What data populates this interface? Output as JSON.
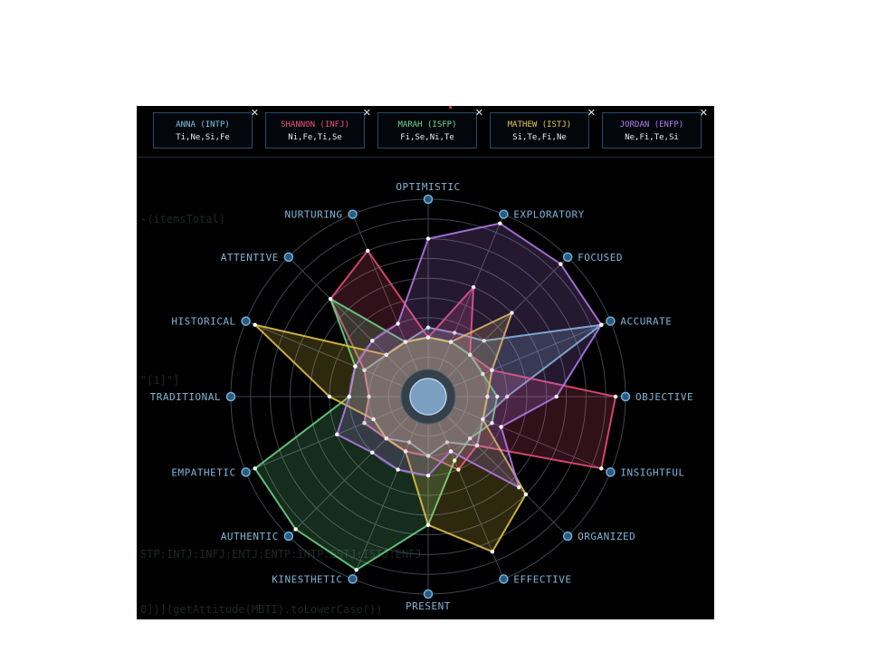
{
  "profiles": [
    {
      "name": "ANNA (INTP)",
      "functions": "Ti,Ne,Si,Fe",
      "color": "#7ec8e8"
    },
    {
      "name": "SHANNON (INFJ)",
      "functions": "Ni,Fe,Ti,Se",
      "color": "#f0507e"
    },
    {
      "name": "MARAH (ISFP)",
      "functions": "Fi,Se,Ni,Te",
      "color": "#6fdc8c"
    },
    {
      "name": "MATHEW (ISTJ)",
      "functions": "Si,Te,Fi,Ne",
      "color": "#e8c84a"
    },
    {
      "name": "JORDAN (ENFP)",
      "functions": "Ne,Fi,Te,Si",
      "color": "#b97cf0"
    }
  ],
  "close_symbol": "✕",
  "background_code": {
    "line1": "-(itemsTotal)",
    "line2": "\"[1]\"]",
    "line3": "STP:INTJ:INFJ:ENTJ:ENTP:INTP:ESTJ:ISTJ:ENFJ",
    "line4": "0])](getAttitude(MBTI).toLowerCase())"
  },
  "chart_data": {
    "type": "radar",
    "title": "",
    "axes": [
      "OPTIMISTIC",
      "EXPLORATORY",
      "FOCUSED",
      "ACCURATE",
      "OBJECTIVE",
      "INSIGHTFUL",
      "ORGANIZED",
      "EFFECTIVE",
      "PRESENT",
      "KINESTHETIC",
      "AUTHENTIC",
      "EMPATHETIC",
      "TRADITIONAL",
      "HISTORICAL",
      "ATTENTIVE",
      "NURTURING"
    ],
    "range": [
      0,
      10
    ],
    "rings": 10,
    "series": [
      {
        "name": "ANNA (INTP)",
        "color": "#7ec8e8",
        "values": [
          3.5,
          3.5,
          4,
          9.5,
          4,
          3,
          3.5,
          2.5,
          3,
          2.5,
          3,
          3.5,
          3,
          3.5,
          3,
          3
        ]
      },
      {
        "name": "SHANNON (INFJ)",
        "color": "#f0507e",
        "values": [
          3,
          6,
          3,
          3.5,
          9.5,
          9.5,
          3.5,
          4,
          3,
          3,
          3,
          3.5,
          3,
          3.5,
          7,
          8
        ]
      },
      {
        "name": "MARAH (ISFP)",
        "color": "#6fdc8c",
        "values": [
          3,
          3,
          3,
          3,
          3.5,
          3.5,
          3,
          3.5,
          6.5,
          9.5,
          9.5,
          9.5,
          4,
          4,
          7,
          3
        ]
      },
      {
        "name": "MATHEW (ISTJ)",
        "color": "#e8c84a",
        "values": [
          3,
          3,
          6,
          3.5,
          3,
          3,
          7,
          8.5,
          6.5,
          3,
          3,
          3,
          5,
          9.5,
          3,
          3
        ]
      },
      {
        "name": "JORDAN (ENFP)",
        "color": "#b97cf0",
        "values": [
          8,
          9.5,
          9.5,
          9.5,
          6.5,
          4,
          6.5,
          3,
          4,
          4,
          4,
          5,
          4,
          4,
          4,
          4
        ]
      }
    ]
  }
}
